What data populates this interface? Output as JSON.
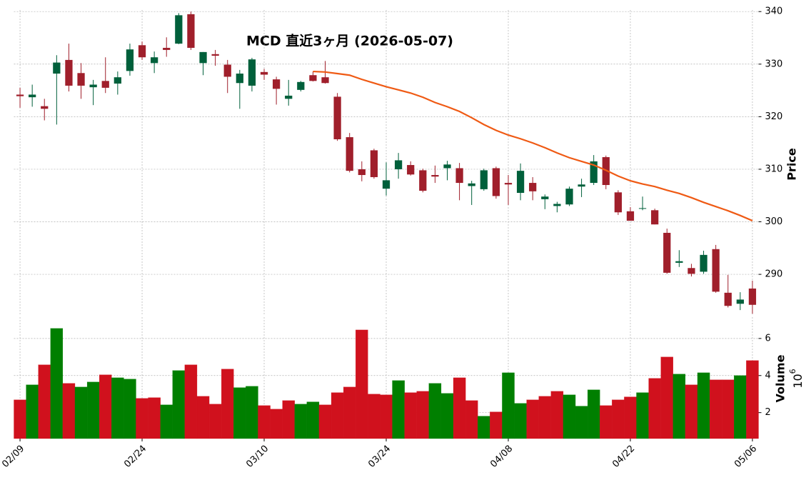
{
  "chart_data": {
    "type": "candlestick",
    "title": "MCD 直近3ヶ月 (2026-05-07)",
    "categories": [
      "02/09",
      null,
      null,
      null,
      null,
      null,
      null,
      null,
      null,
      null,
      "02/24",
      null,
      null,
      null,
      null,
      null,
      null,
      null,
      null,
      null,
      "03/10",
      null,
      null,
      null,
      null,
      null,
      null,
      null,
      null,
      null,
      "03/24",
      null,
      null,
      null,
      null,
      null,
      null,
      null,
      null,
      null,
      "04/08",
      null,
      null,
      null,
      null,
      null,
      null,
      null,
      null,
      null,
      "04/22",
      null,
      null,
      null,
      null,
      null,
      null,
      null,
      null,
      null,
      "05/06"
    ],
    "open": [
      324.2,
      323.7,
      322.0,
      328.2,
      330.8,
      328.3,
      325.6,
      326.8,
      326.3,
      328.7,
      333.6,
      330.2,
      333.1,
      333.9,
      339.5,
      330.2,
      331.9,
      329.9,
      326.4,
      325.9,
      328.5,
      327.1,
      323.4,
      325.1,
      327.9,
      327.5,
      323.8,
      316.1,
      310.0,
      313.6,
      306.3,
      310.0,
      310.8,
      309.8,
      308.9,
      310.2,
      310.2,
      306.8,
      306.2,
      310.2,
      307.4,
      305.5,
      307.4,
      304.3,
      303.0,
      303.3,
      306.7,
      307.4,
      312.3,
      305.6,
      302.0,
      302.5,
      302.2,
      297.9,
      292.2,
      291.2,
      290.5,
      294.8,
      286.5,
      284.4,
      287.3
    ],
    "high": [
      325.5,
      326.1,
      323.4,
      331.7,
      333.9,
      330.2,
      327.0,
      331.3,
      328.6,
      333.9,
      334.3,
      332.4,
      335.1,
      339.7,
      340.0,
      332.3,
      332.7,
      330.8,
      328.9,
      331.2,
      329.1,
      327.6,
      327.0,
      326.8,
      328.6,
      330.6,
      324.5,
      316.9,
      311.5,
      313.9,
      311.3,
      313.1,
      311.5,
      310.1,
      310.7,
      311.6,
      311.2,
      307.8,
      310.1,
      310.5,
      308.9,
      311.1,
      308.5,
      305.2,
      303.8,
      306.7,
      308.2,
      312.7,
      312.6,
      306.0,
      302.8,
      304.8,
      302.5,
      298.7,
      294.6,
      292.0,
      294.5,
      295.6,
      289.9,
      286.6,
      288.8
    ],
    "low": [
      321.7,
      321.9,
      319.3,
      318.5,
      324.8,
      323.4,
      322.2,
      324.5,
      324.2,
      327.8,
      330.8,
      328.3,
      331.4,
      333.8,
      332.7,
      327.9,
      329.7,
      324.5,
      321.5,
      324.8,
      327.0,
      322.3,
      322.1,
      324.8,
      326.7,
      326.3,
      315.4,
      309.4,
      307.7,
      308.2,
      305.0,
      308.2,
      308.8,
      305.6,
      307.4,
      307.9,
      304.1,
      303.2,
      305.9,
      304.4,
      303.2,
      304.1,
      304.1,
      302.4,
      301.8,
      303.0,
      304.7,
      307.0,
      306.2,
      301.3,
      300.2,
      302.2,
      299.5,
      290.1,
      291.4,
      289.6,
      290.1,
      286.5,
      283.7,
      283.2,
      282.5
    ],
    "close": [
      323.9,
      324.2,
      321.5,
      330.3,
      325.9,
      325.9,
      326.1,
      325.5,
      327.5,
      332.8,
      331.3,
      331.3,
      332.7,
      339.3,
      333.1,
      332.3,
      331.6,
      327.6,
      328.2,
      330.9,
      328.0,
      325.3,
      324.0,
      326.6,
      326.8,
      326.4,
      315.7,
      309.7,
      308.9,
      308.5,
      307.9,
      311.7,
      309.0,
      305.9,
      308.6,
      310.9,
      307.4,
      307.3,
      309.8,
      304.9,
      307.1,
      309.7,
      305.8,
      304.8,
      303.4,
      306.3,
      307.1,
      311.5,
      307.0,
      301.8,
      300.2,
      302.6,
      299.5,
      290.3,
      292.5,
      290.1,
      293.7,
      286.7,
      284.0,
      285.2,
      284.2
    ],
    "up_color": "#00603b",
    "down_color": "#a01f2b",
    "ylim": [
      282.4,
      340.3
    ],
    "yticks": [
      290,
      300,
      310,
      320,
      330,
      340
    ],
    "y_label": "Price",
    "grid": true,
    "moving_average": {
      "color": "#ef5a14",
      "values": [
        null,
        null,
        null,
        null,
        null,
        null,
        null,
        null,
        null,
        null,
        null,
        null,
        null,
        null,
        null,
        null,
        null,
        null,
        null,
        null,
        null,
        null,
        null,
        null,
        328.6,
        328.5,
        328.2,
        327.9,
        327.1,
        326.4,
        325.7,
        325.1,
        324.5,
        323.7,
        322.7,
        321.9,
        321.0,
        319.8,
        318.5,
        317.4,
        316.5,
        315.8,
        315.0,
        314.1,
        313.1,
        312.2,
        311.5,
        310.8,
        309.8,
        308.7,
        307.8,
        307.2,
        306.7,
        306.0,
        305.4,
        304.6,
        303.7,
        302.9,
        302.1,
        301.2,
        300.2
      ]
    },
    "volume": {
      "values": [
        2.69,
        3.5,
        4.58,
        6.54,
        3.58,
        3.38,
        3.65,
        4.04,
        3.88,
        3.81,
        2.77,
        2.81,
        2.42,
        4.27,
        4.58,
        2.88,
        2.46,
        4.35,
        3.35,
        3.42,
        2.38,
        2.19,
        2.65,
        2.46,
        2.58,
        2.42,
        3.08,
        3.38,
        6.46,
        3.0,
        2.96,
        3.73,
        3.08,
        3.15,
        3.58,
        3.04,
        3.88,
        2.65,
        1.81,
        2.04,
        4.15,
        2.5,
        2.69,
        2.88,
        3.15,
        2.96,
        2.35,
        3.23,
        2.38,
        2.69,
        2.85,
        3.08,
        3.85,
        5.0,
        4.08,
        3.5,
        4.15,
        3.77,
        3.77,
        4.0,
        4.81
      ],
      "colors": [
        "#d0111d",
        "#007f00",
        "#d0111d",
        "#007f00",
        "#d0111d",
        "#007f00",
        "#007f00",
        "#d0111d",
        "#007f00",
        "#007f00",
        "#d0111d",
        "#d0111d",
        "#007f00",
        "#007f00",
        "#d0111d",
        "#d0111d",
        "#d0111d",
        "#d0111d",
        "#007f00",
        "#007f00",
        "#d0111d",
        "#d0111d",
        "#d0111d",
        "#007f00",
        "#007f00",
        "#d0111d",
        "#d0111d",
        "#d0111d",
        "#d0111d",
        "#d0111d",
        "#d0111d",
        "#007f00",
        "#d0111d",
        "#d0111d",
        "#007f00",
        "#007f00",
        "#d0111d",
        "#d0111d",
        "#007f00",
        "#d0111d",
        "#007f00",
        "#007f00",
        "#d0111d",
        "#d0111d",
        "#d0111d",
        "#007f00",
        "#007f00",
        "#007f00",
        "#d0111d",
        "#d0111d",
        "#d0111d",
        "#007f00",
        "#d0111d",
        "#d0111d",
        "#007f00",
        "#d0111d",
        "#007f00",
        "#d0111d",
        "#d0111d",
        "#007f00",
        "#d0111d"
      ],
      "ylim": [
        0.6,
        7.15
      ],
      "yticks": [
        2,
        4,
        6
      ],
      "y_label": "Volume",
      "scale_base": "10",
      "scale_exponent": "6"
    }
  }
}
